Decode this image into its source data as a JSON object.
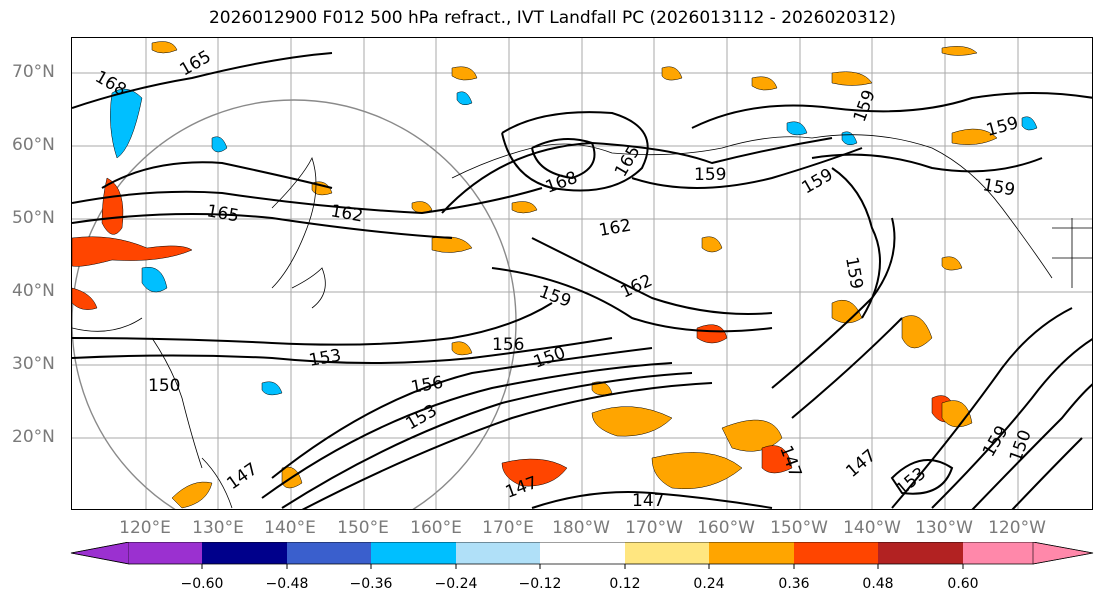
{
  "title": "2026012900 F012 500 hPa refract., IVT Landfall PC (2026013112 - 2026020312)",
  "lat_labels": [
    "70°N",
    "60°N",
    "50°N",
    "40°N",
    "30°N",
    "20°N"
  ],
  "lon_labels": [
    "120°E",
    "130°E",
    "140°E",
    "150°E",
    "160°E",
    "170°E",
    "180°W",
    "170°W",
    "160°W",
    "150°W",
    "140°W",
    "130°W",
    "120°W"
  ],
  "contour_labels": [
    "168",
    "165",
    "165",
    "162",
    "168",
    "165",
    "159",
    "159",
    "159",
    "159",
    "162",
    "162",
    "159",
    "159",
    "156",
    "156",
    "153",
    "153",
    "150",
    "150",
    "147",
    "147",
    "147",
    "147",
    "147",
    "153",
    "159",
    "159",
    "150"
  ],
  "colorbar": {
    "colors": [
      "#9b30d0",
      "#00008b",
      "#3a5fcd",
      "#00bfff",
      "#b0e0f8",
      "#ffffff",
      "#ffe680",
      "#ffa500",
      "#ff4500",
      "#b22222",
      "#ff88aa"
    ],
    "tick_labels": [
      "−0.60",
      "−0.48",
      "−0.36",
      "−0.24",
      "−0.12",
      "0.12",
      "0.24",
      "0.36",
      "0.48",
      "0.60"
    ]
  }
}
